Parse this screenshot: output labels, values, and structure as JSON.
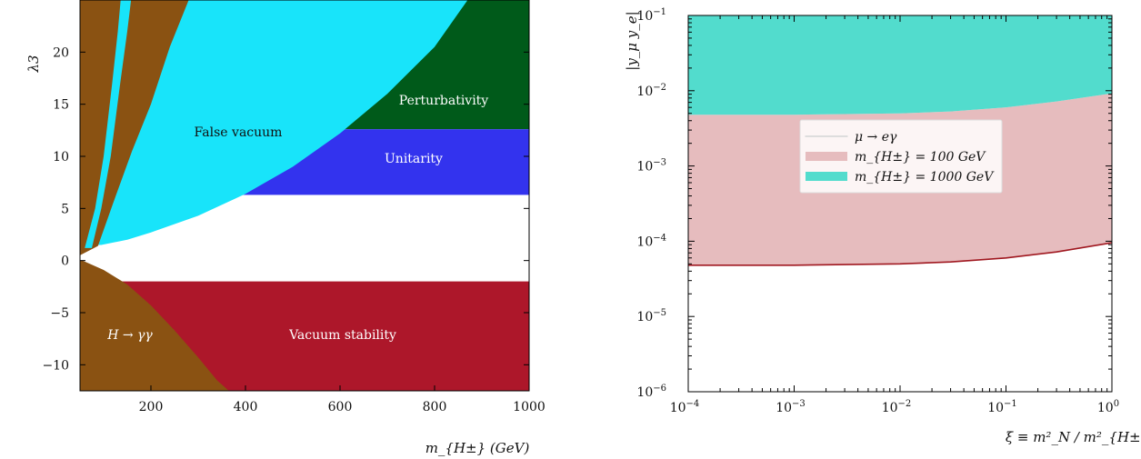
{
  "chart_data": [
    {
      "type": "area",
      "xlabel": "m_{H±} (GeV)",
      "ylabel": "λ3",
      "xlim": [
        50,
        1000
      ],
      "ylim": [
        -12.5,
        25
      ],
      "xticks": [
        200,
        400,
        600,
        800,
        1000
      ],
      "yticks": [
        -10,
        -5,
        0,
        5,
        10,
        15,
        20
      ],
      "ytick_labels": [
        "−10",
        "−5",
        "0",
        "5",
        "10",
        "15",
        "20"
      ],
      "xtick_labels": [
        "200",
        "400",
        "600",
        "800",
        "1000"
      ],
      "regions": [
        {
          "name": "Perturbativity",
          "color": "#005a1a",
          "y_min": 12.6,
          "y_max": 25
        },
        {
          "name": "Unitarity",
          "color": "#3333ee",
          "y_min": 6.3,
          "y_max": 12.6
        },
        {
          "name": "False vacuum",
          "color": "#18e4fa",
          "boundary_x": [
            95,
            150,
            200,
            300,
            400,
            500,
            600,
            700,
            800,
            870
          ],
          "boundary_y": [
            1.5,
            2.0,
            2.7,
            4.3,
            6.4,
            9.0,
            12.2,
            16.0,
            20.5,
            25
          ]
        },
        {
          "name": "Vacuum stability",
          "color": "#ad172a",
          "y_min": -12.5,
          "y_max": -2.0
        },
        {
          "name": "H → γγ",
          "color": "#8a5212",
          "lower_boundary_x": [
            55,
            100,
            150,
            200,
            250,
            300,
            340,
            365
          ],
          "lower_boundary_y": [
            0,
            -0.9,
            -2.3,
            -4.3,
            -6.7,
            -9.3,
            -11.5,
            -12.5
          ],
          "upper_boundary_x": [
            88,
            120,
            160,
            200,
            240,
            280
          ],
          "upper_boundary_y": [
            1.4,
            5.5,
            10.5,
            15,
            20.5,
            25
          ]
        }
      ],
      "labels": {
        "perturbativity": "Perturbativity",
        "unitarity": "Unitarity",
        "false_vacuum": "False vacuum",
        "vacuum_stability": "Vacuum stability",
        "hgg": "H → γγ"
      }
    },
    {
      "type": "area",
      "xlabel": "ξ ≡ m²_N / m²_{H±}",
      "ylabel": "|y_μ y_e|",
      "x_scale": "log",
      "y_scale": "log",
      "xlim": [
        0.0001,
        1
      ],
      "ylim": [
        1e-06,
        0.1
      ],
      "xtick_labels": [
        "10",
        "10",
        "10",
        "10",
        "10"
      ],
      "xtick_exponents": [
        "−4",
        "−3",
        "−2",
        "−1",
        "0"
      ],
      "ytick_labels": [
        "10",
        "10",
        "10",
        "10",
        "10",
        "10"
      ],
      "ytick_exponents": [
        "−6",
        "−5",
        "−4",
        "−3",
        "−2",
        "−1"
      ],
      "series": [
        {
          "name": "m_{H±} = 100 GeV",
          "color": "#e6bcbe",
          "line_color": "#a01820",
          "x": [
            0.0001,
            0.001,
            0.01,
            0.03,
            0.1,
            0.3,
            1
          ],
          "y": [
            4.8e-05,
            4.8e-05,
            5e-05,
            5.3e-05,
            6e-05,
            7.2e-05,
            9.55e-05
          ]
        },
        {
          "name": "m_{H±} = 1000 GeV",
          "color": "#52dccd",
          "x": [
            0.0001,
            0.001,
            0.01,
            0.03,
            0.1,
            0.3,
            1
          ],
          "y": [
            0.0048,
            0.0048,
            0.005,
            0.0053,
            0.006,
            0.0072,
            0.0092
          ]
        }
      ],
      "legend": {
        "placement": "center",
        "entries": [
          "μ → eγ",
          "m_{H±} = 100 GeV",
          "m_{H±} = 1000 GeV"
        ]
      }
    }
  ]
}
